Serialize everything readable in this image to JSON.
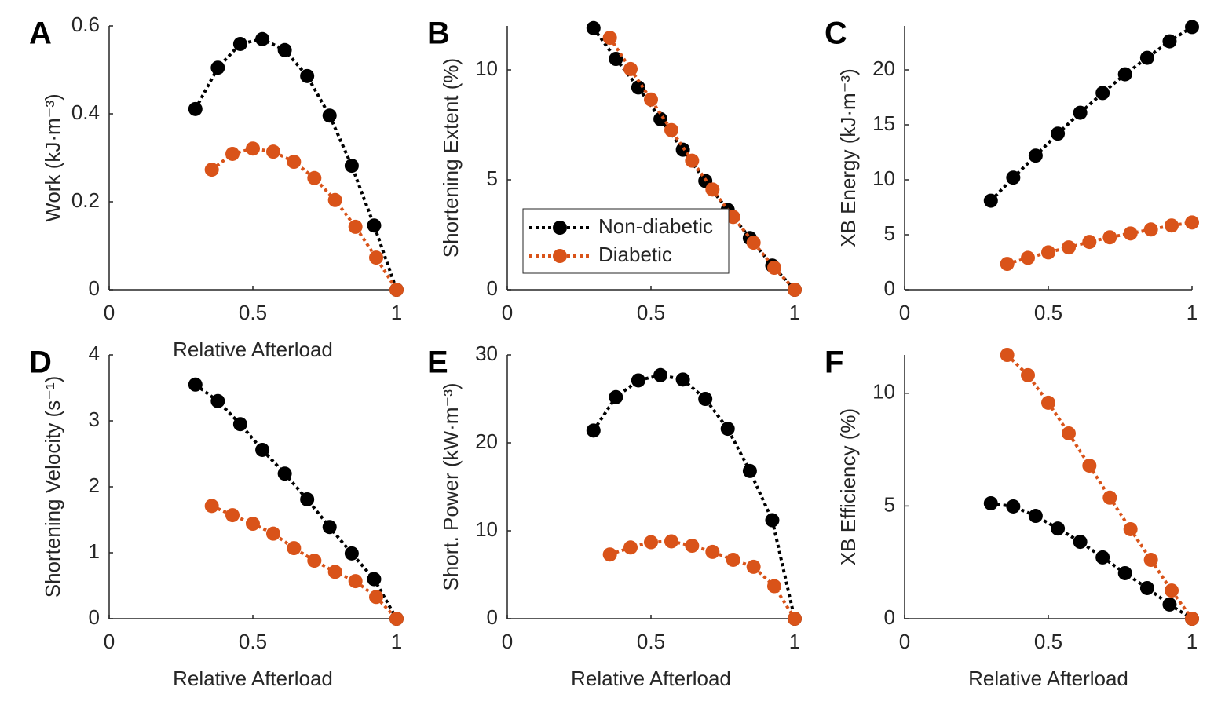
{
  "chart_data": [
    {
      "type": "line",
      "panel_label": "A",
      "xlabel": "Relative Afterload",
      "ylabel": "Work (kJ·m⁻³)",
      "xlim": [
        0,
        1
      ],
      "xticks": [
        0,
        0.5,
        1
      ],
      "ylim": [
        0,
        0.6
      ],
      "yticks": [
        0,
        0.2,
        0.4,
        0.6
      ],
      "series": [
        {
          "color": "#000000",
          "x": [
            0.3,
            0.378,
            0.456,
            0.533,
            0.611,
            0.689,
            0.767,
            0.844,
            0.922,
            1.0
          ],
          "values": [
            0.411,
            0.505,
            0.559,
            0.57,
            0.545,
            0.486,
            0.396,
            0.282,
            0.146,
            0
          ]
        },
        {
          "color": "#d95319",
          "x": [
            0.357,
            0.429,
            0.5,
            0.571,
            0.643,
            0.714,
            0.786,
            0.857,
            0.929,
            1.0
          ],
          "values": [
            0.273,
            0.309,
            0.321,
            0.314,
            0.291,
            0.254,
            0.204,
            0.143,
            0.073,
            0
          ]
        }
      ]
    },
    {
      "type": "line",
      "panel_label": "B",
      "xlabel": null,
      "ylabel": "Shortening Extent (%)",
      "xlim": [
        0,
        1
      ],
      "xticks": [
        0,
        0.5,
        1
      ],
      "ylim": [
        0,
        12
      ],
      "yticks": [
        0,
        5,
        10
      ],
      "legend": "lower left",
      "series": [
        {
          "name": "Non-diabetic",
          "color": "#000000",
          "x": [
            0.3,
            0.378,
            0.456,
            0.533,
            0.611,
            0.689,
            0.767,
            0.844,
            0.922,
            1.0
          ],
          "values": [
            11.9,
            10.5,
            9.2,
            7.76,
            6.37,
            4.95,
            3.63,
            2.35,
            1.1,
            0
          ]
        },
        {
          "name": "Diabetic",
          "color": "#d95319",
          "x": [
            0.357,
            0.429,
            0.5,
            0.571,
            0.643,
            0.714,
            0.786,
            0.857,
            0.929,
            1.0
          ],
          "values": [
            11.46,
            10.04,
            8.65,
            7.26,
            5.87,
            4.56,
            3.31,
            2.14,
            1.0,
            0
          ]
        }
      ]
    },
    {
      "type": "line",
      "panel_label": "C",
      "xlabel": null,
      "ylabel": "XB Energy (kJ·m⁻³)",
      "xlim": [
        0,
        1
      ],
      "xticks": [
        0,
        0.5,
        1
      ],
      "ylim": [
        0,
        24
      ],
      "yticks": [
        0,
        5,
        10,
        15,
        20
      ],
      "series": [
        {
          "color": "#000000",
          "x": [
            0.3,
            0.378,
            0.456,
            0.533,
            0.611,
            0.689,
            0.767,
            0.844,
            0.922,
            1.0
          ],
          "values": [
            8.1,
            10.2,
            12.2,
            14.2,
            16.1,
            17.9,
            19.6,
            21.1,
            22.6,
            23.9
          ]
        },
        {
          "color": "#d95319",
          "x": [
            0.357,
            0.429,
            0.5,
            0.571,
            0.643,
            0.714,
            0.786,
            0.857,
            0.929,
            1.0
          ],
          "values": [
            2.35,
            2.9,
            3.4,
            3.85,
            4.35,
            4.77,
            5.12,
            5.48,
            5.84,
            6.12
          ]
        }
      ]
    },
    {
      "type": "line",
      "panel_label": "D",
      "xlabel": "Relative Afterload",
      "ylabel": "Shortening Velocity (s⁻¹)",
      "xlim": [
        0,
        1
      ],
      "xticks": [
        0,
        0.5,
        1
      ],
      "ylim": [
        0,
        4
      ],
      "yticks": [
        0,
        1,
        2,
        3,
        4
      ],
      "series": [
        {
          "color": "#000000",
          "x": [
            0.3,
            0.378,
            0.456,
            0.533,
            0.611,
            0.689,
            0.767,
            0.844,
            0.922,
            1.0
          ],
          "values": [
            3.55,
            3.3,
            2.95,
            2.56,
            2.2,
            1.81,
            1.39,
            0.99,
            0.6,
            0
          ]
        },
        {
          "color": "#d95319",
          "x": [
            0.357,
            0.429,
            0.5,
            0.571,
            0.643,
            0.714,
            0.786,
            0.857,
            0.929,
            1.0
          ],
          "values": [
            1.71,
            1.57,
            1.44,
            1.29,
            1.07,
            0.88,
            0.71,
            0.57,
            0.33,
            0
          ]
        }
      ]
    },
    {
      "type": "line",
      "panel_label": "E",
      "xlabel": "Relative Afterload",
      "ylabel": "Short. Power (kW·m⁻³)",
      "xlim": [
        0,
        1
      ],
      "xticks": [
        0,
        0.5,
        1
      ],
      "ylim": [
        0,
        30
      ],
      "yticks": [
        0,
        10,
        20,
        30
      ],
      "series": [
        {
          "color": "#000000",
          "x": [
            0.3,
            0.378,
            0.456,
            0.533,
            0.611,
            0.689,
            0.767,
            0.844,
            0.922,
            1.0
          ],
          "values": [
            21.4,
            25.2,
            27.1,
            27.7,
            27.2,
            25.0,
            21.6,
            16.8,
            11.2,
            0
          ]
        },
        {
          "color": "#d95319",
          "x": [
            0.357,
            0.429,
            0.5,
            0.571,
            0.643,
            0.714,
            0.786,
            0.857,
            0.929,
            1.0
          ],
          "values": [
            7.3,
            8.1,
            8.7,
            8.8,
            8.3,
            7.6,
            6.7,
            5.9,
            3.7,
            0
          ]
        }
      ]
    },
    {
      "type": "line",
      "panel_label": "F",
      "xlabel": "Relative Afterload",
      "ylabel": "XB Efficiency (%)",
      "xlim": [
        0,
        1
      ],
      "xticks": [
        0,
        0.5,
        1
      ],
      "ylim": [
        0,
        11.7
      ],
      "yticks": [
        0,
        5,
        10
      ],
      "series": [
        {
          "color": "#000000",
          "x": [
            0.3,
            0.378,
            0.456,
            0.533,
            0.611,
            0.689,
            0.767,
            0.844,
            0.922,
            1.0
          ],
          "values": [
            5.12,
            4.98,
            4.56,
            4.0,
            3.41,
            2.72,
            2.02,
            1.36,
            0.63,
            0
          ]
        },
        {
          "color": "#d95319",
          "x": [
            0.357,
            0.429,
            0.5,
            0.571,
            0.643,
            0.714,
            0.786,
            0.857,
            0.929,
            1.0
          ],
          "values": [
            11.7,
            10.8,
            9.58,
            8.22,
            6.79,
            5.37,
            3.97,
            2.61,
            1.25,
            0
          ]
        }
      ]
    }
  ]
}
